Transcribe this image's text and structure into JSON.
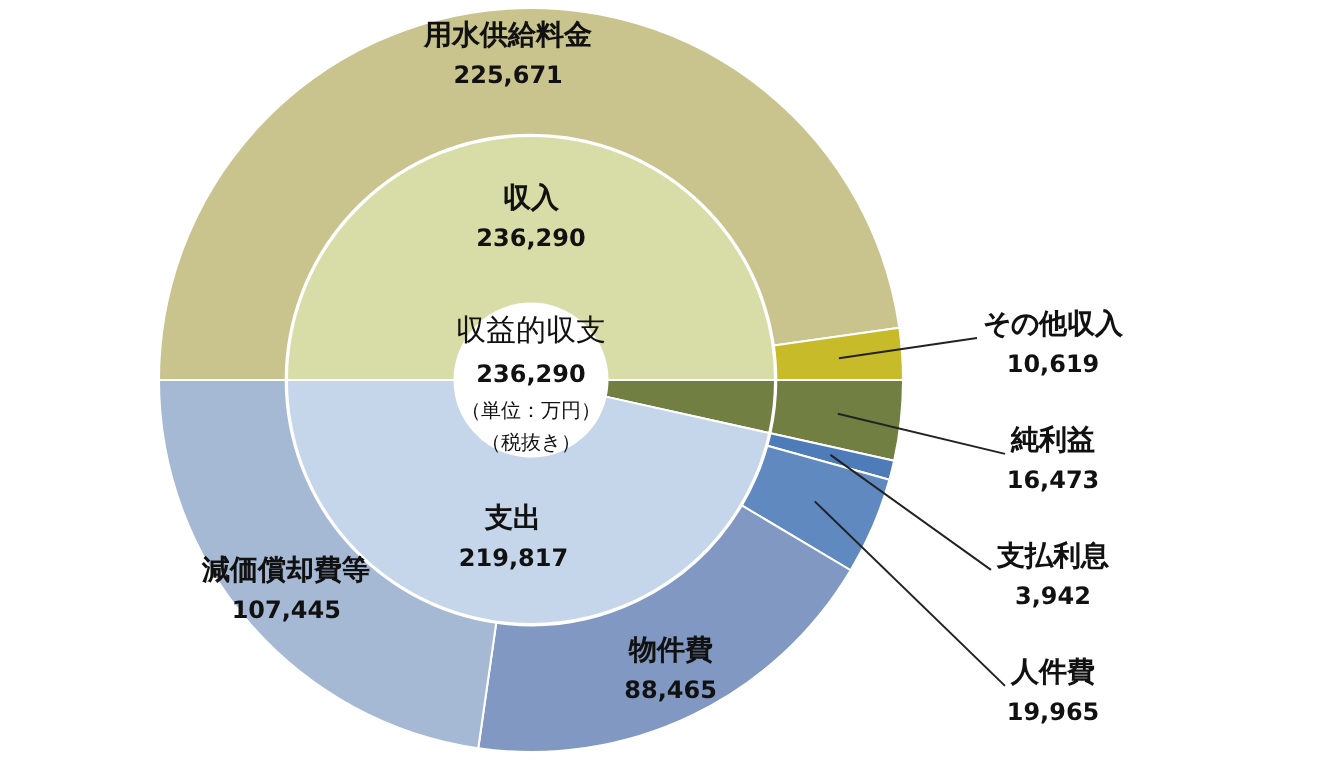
{
  "chart_data": [
    {
      "type": "donut",
      "categories": [
        "用水供給料金",
        "その他収入",
        "純利益",
        "支払利息",
        "人件費",
        "物件費",
        "減価償却費等"
      ],
      "values": [
        225671,
        10619,
        16473,
        3942,
        19965,
        88465,
        107445
      ],
      "colors": [
        "#c9c48e",
        "#c8bb2a",
        "#727f42",
        "#4d7cb9",
        "#6089c0",
        "#8199c2",
        "#a6b9d4"
      ],
      "value_labels": [
        "225,671",
        "10,619",
        "16,473",
        "3,942",
        "19,965",
        "88,465",
        "107,445"
      ]
    },
    {
      "type": "donut",
      "categories": [
        "収入",
        null,
        "支出"
      ],
      "values": [
        236290,
        16473,
        219817
      ],
      "colors": [
        "#d8dda8",
        "#727f42",
        "#c5d5ea"
      ],
      "value_labels": [
        "236,290",
        null,
        "219,817"
      ],
      "annotations": [
        "収益的収支",
        "236,290",
        "（単位：万円）",
        "（税抜き）"
      ]
    }
  ]
}
